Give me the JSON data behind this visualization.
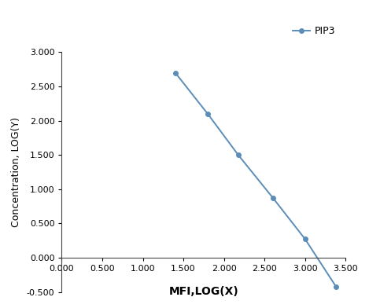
{
  "x": [
    1.4,
    1.8,
    2.176,
    2.602,
    3.0,
    3.38
  ],
  "y": [
    2.7,
    2.1,
    1.5,
    0.875,
    0.272,
    -0.42
  ],
  "line_color": "#5b8db8",
  "marker_color": "#5b8db8",
  "marker_style": "o",
  "marker_size": 4,
  "line_width": 1.4,
  "legend_label": "PIP3",
  "xlabel": "MFI,LOG(X)",
  "ylabel": "Concentration, LOG(Y)",
  "xlim": [
    0.0,
    3.5
  ],
  "ylim": [
    -0.5,
    3.0
  ],
  "xticks": [
    0.0,
    0.5,
    1.0,
    1.5,
    2.0,
    2.5,
    3.0,
    3.5
  ],
  "yticks": [
    -0.5,
    0.0,
    0.5,
    1.0,
    1.5,
    2.0,
    2.5,
    3.0
  ],
  "xlabel_fontsize": 10,
  "ylabel_fontsize": 9,
  "legend_fontsize": 9,
  "tick_fontsize": 8,
  "xlabel_fontweight": "bold",
  "background_color": "#ffffff"
}
